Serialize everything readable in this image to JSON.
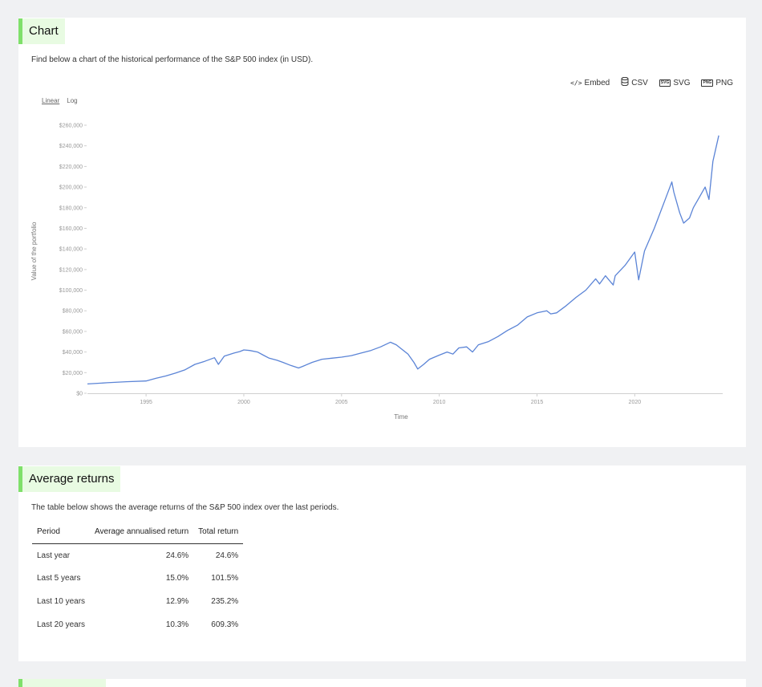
{
  "chart_section": {
    "title": "Chart",
    "description": "Find below a chart of the historical performance of the S&P 500 index (in USD).",
    "toolbar": [
      {
        "label": "Embed",
        "icon": "code-icon"
      },
      {
        "label": "CSV",
        "icon": "database-icon"
      },
      {
        "label": "SVG",
        "icon": "svg-file-icon"
      },
      {
        "label": "PNG",
        "icon": "png-file-icon"
      }
    ],
    "scale_options": [
      "Linear",
      "Log"
    ],
    "scale_selected": "Linear"
  },
  "chart_data": {
    "type": "line",
    "title": "",
    "xlabel": "Time",
    "ylabel": "Value of the portfolio",
    "x_ticks": [
      "1995",
      "2000",
      "2005",
      "2010",
      "2015",
      "2020"
    ],
    "y_ticks": [
      "$0",
      "$20,000",
      "$40,000",
      "$60,000",
      "$80,000",
      "$100,000",
      "$120,000",
      "$140,000",
      "$160,000",
      "$180,000",
      "$200,000",
      "$220,000",
      "$240,000",
      "$260,000"
    ],
    "xlim": [
      1992.0,
      2024.5
    ],
    "ylim": [
      0,
      260000
    ],
    "line_color": "#5b84d6",
    "grid": false,
    "series": [
      {
        "x": [
          1992.0,
          1993.0,
          1994.0,
          1995.0,
          1995.5,
          1996.0,
          1996.5,
          1997.0,
          1997.5,
          1998.0,
          1998.5,
          1998.7,
          1999.0,
          1999.5,
          1999.8,
          2000.0,
          2000.3,
          2000.7,
          2001.0,
          2001.3,
          2001.7,
          2002.0,
          2002.4,
          2002.8,
          2003.0,
          2003.5,
          2004.0,
          2004.5,
          2005.0,
          2005.5,
          2006.0,
          2006.5,
          2007.0,
          2007.5,
          2007.8,
          2008.0,
          2008.4,
          2008.7,
          2008.9,
          2009.2,
          2009.5,
          2010.0,
          2010.4,
          2010.7,
          2011.0,
          2011.4,
          2011.7,
          2012.0,
          2012.5,
          2013.0,
          2013.5,
          2014.0,
          2014.5,
          2015.0,
          2015.5,
          2015.7,
          2016.0,
          2016.5,
          2017.0,
          2017.5,
          2018.0,
          2018.2,
          2018.5,
          2018.9,
          2019.0,
          2019.5,
          2020.0,
          2020.2,
          2020.5,
          2021.0,
          2021.5,
          2021.9,
          2022.0,
          2022.3,
          2022.5,
          2022.8,
          2023.0,
          2023.3,
          2023.6,
          2023.8,
          2024.0,
          2024.3
        ],
        "y": [
          9000,
          10200,
          11200,
          11900,
          14500,
          16700,
          19500,
          22800,
          28000,
          31000,
          34500,
          28000,
          36000,
          39000,
          40500,
          42000,
          41500,
          40000,
          37000,
          34000,
          32000,
          30000,
          27000,
          24500,
          26000,
          30000,
          33000,
          34000,
          35000,
          36500,
          39000,
          41500,
          45000,
          49500,
          47000,
          44000,
          38000,
          30000,
          23500,
          28000,
          33000,
          37000,
          40000,
          38000,
          44000,
          45000,
          40000,
          47000,
          50000,
          55000,
          61000,
          66000,
          74000,
          78000,
          80000,
          77000,
          78000,
          85000,
          93000,
          100000,
          111000,
          106000,
          114000,
          105000,
          114000,
          124000,
          137000,
          110000,
          138000,
          160000,
          185000,
          205000,
          195000,
          175000,
          165000,
          170000,
          180000,
          190000,
          200000,
          188000,
          225000,
          250000
        ]
      }
    ]
  },
  "returns_section": {
    "title": "Average returns",
    "description": "The table below shows the average returns of the S&P 500 index over the last periods.",
    "columns": [
      "Period",
      "Average annualised return",
      "Total return"
    ],
    "rows": [
      {
        "period": "Last year",
        "annualised": "24.6%",
        "total": "24.6%"
      },
      {
        "period": "Last 5 years",
        "annualised": "15.0%",
        "total": "101.5%"
      },
      {
        "period": "Last 10 years",
        "annualised": "12.9%",
        "total": "235.2%"
      },
      {
        "period": "Last 20 years",
        "annualised": "10.3%",
        "total": "609.3%"
      }
    ]
  },
  "colors": {
    "accent": "#7fe06a",
    "accent_bg": "#e8fbe2",
    "page_bg": "#f0f1f3"
  }
}
